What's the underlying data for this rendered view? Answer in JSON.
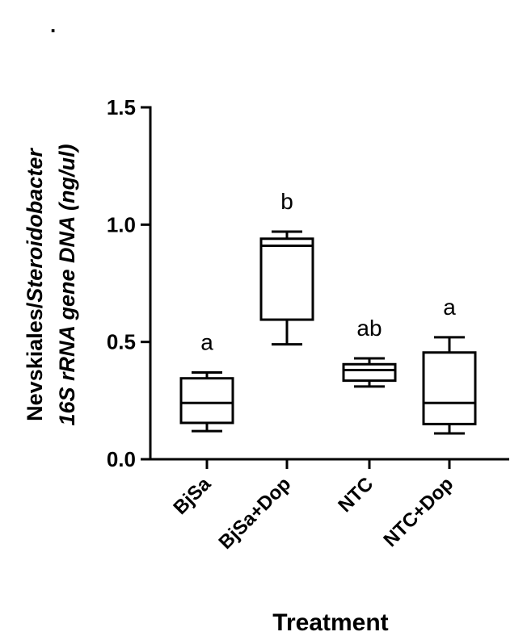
{
  "chart_data": {
    "type": "box",
    "ylabel_line1_prefix": "Nevskiales/",
    "ylabel_line1_italic": "Steroidobacter",
    "ylabel_line2": "16S rRNA gene DNA (ng/ul)",
    "xlabel": "Treatment",
    "ylim": [
      0.0,
      1.5
    ],
    "yticks": [
      "0.0",
      "0.5",
      "1.0",
      "1.5"
    ],
    "ytick_values": [
      0.0,
      0.5,
      1.0,
      1.5
    ],
    "categories": [
      "BjSa",
      "BjSa+Dop",
      "NTC",
      "NTC+Dop"
    ],
    "boxes": [
      {
        "category": "BjSa",
        "min": 0.12,
        "q1": 0.155,
        "median": 0.24,
        "q3": 0.345,
        "max": 0.37,
        "letter": "a"
      },
      {
        "category": "BjSa+Dop",
        "min": 0.49,
        "q1": 0.595,
        "median": 0.91,
        "q3": 0.94,
        "max": 0.97,
        "letter": "b"
      },
      {
        "category": "NTC",
        "min": 0.31,
        "q1": 0.335,
        "median": 0.38,
        "q3": 0.405,
        "max": 0.43,
        "letter": "ab"
      },
      {
        "category": "NTC+Dop",
        "min": 0.11,
        "q1": 0.15,
        "median": 0.24,
        "q3": 0.455,
        "max": 0.52,
        "letter": "a"
      }
    ],
    "grid": false,
    "legend": "none"
  },
  "corner_mark": "."
}
